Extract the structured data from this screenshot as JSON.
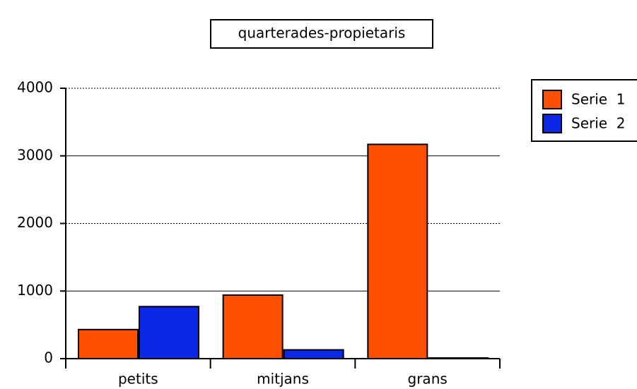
{
  "chart_data": {
    "type": "bar",
    "title": "quarterades-propietaris",
    "categories": [
      "petits",
      "mitjans",
      "grans"
    ],
    "series": [
      {
        "name": "Serie  1",
        "color": "#ff5000",
        "values": [
          430,
          940,
          3170
        ]
      },
      {
        "name": "Serie  2",
        "color": "#0a28e6",
        "values": [
          770,
          130,
          10
        ]
      }
    ],
    "ylim": [
      0,
      4000
    ],
    "yticks": [
      0,
      1000,
      2000,
      3000,
      4000
    ],
    "grid": true
  }
}
